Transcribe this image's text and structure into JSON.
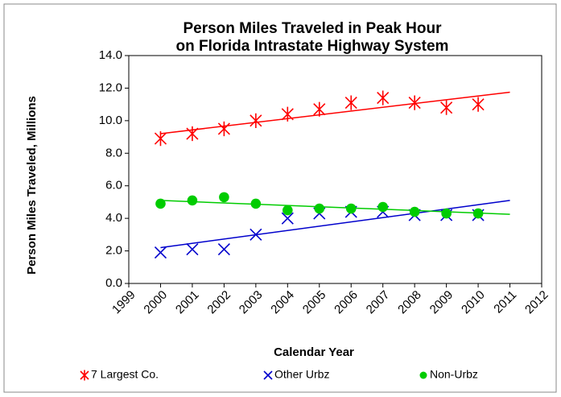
{
  "chart_data": {
    "type": "scatter",
    "title": [
      "Person Miles Traveled in Peak Hour",
      "on Florida Intrastate Highway System"
    ],
    "x_label": "Calendar Year",
    "y_label": "Person Miles Traveled, Millions",
    "x": [
      2000,
      2001,
      2002,
      2003,
      2004,
      2005,
      2006,
      2007,
      2008,
      2009,
      2010
    ],
    "series": [
      {
        "name": "7 Largest Co.",
        "color": "#ff0000",
        "marker": "asterisk",
        "values": [
          8.9,
          9.2,
          9.5,
          10.0,
          10.4,
          10.7,
          11.1,
          11.4,
          11.1,
          10.8,
          11.0
        ],
        "trend_x": [
          2000,
          2011
        ],
        "trend": [
          9.2,
          11.75
        ]
      },
      {
        "name": "Other Urbz",
        "color": "#0000cc",
        "marker": "x",
        "values": [
          1.9,
          2.1,
          2.1,
          3.0,
          4.0,
          4.3,
          4.4,
          4.4,
          4.2,
          4.2,
          4.2
        ],
        "trend_x": [
          2000,
          2011
        ],
        "trend": [
          2.2,
          5.1
        ]
      },
      {
        "name": "Non-Urbz",
        "color": "#00cc00",
        "marker": "circle",
        "values": [
          4.9,
          5.1,
          5.3,
          4.9,
          4.5,
          4.6,
          4.6,
          4.7,
          4.4,
          4.3,
          4.3
        ],
        "trend_x": [
          2000,
          2011
        ],
        "trend": [
          5.1,
          4.25
        ]
      }
    ],
    "xlim": [
      1999,
      2012
    ],
    "xticks": [
      1999,
      2000,
      2001,
      2002,
      2003,
      2004,
      2005,
      2006,
      2007,
      2008,
      2009,
      2010,
      2011,
      2012
    ],
    "ylim": [
      0,
      14
    ],
    "yticks": [
      {
        "value": 0,
        "label": "0.0"
      },
      {
        "value": 2,
        "label": "2.0"
      },
      {
        "value": 4,
        "label": "4.0"
      },
      {
        "value": 6,
        "label": "6.0"
      },
      {
        "value": 8,
        "label": "8.0"
      },
      {
        "value": 10,
        "label": "10.0"
      },
      {
        "value": 12,
        "label": "12.0"
      },
      {
        "value": 14,
        "label": "14.0"
      }
    ],
    "legend": "bottom"
  }
}
